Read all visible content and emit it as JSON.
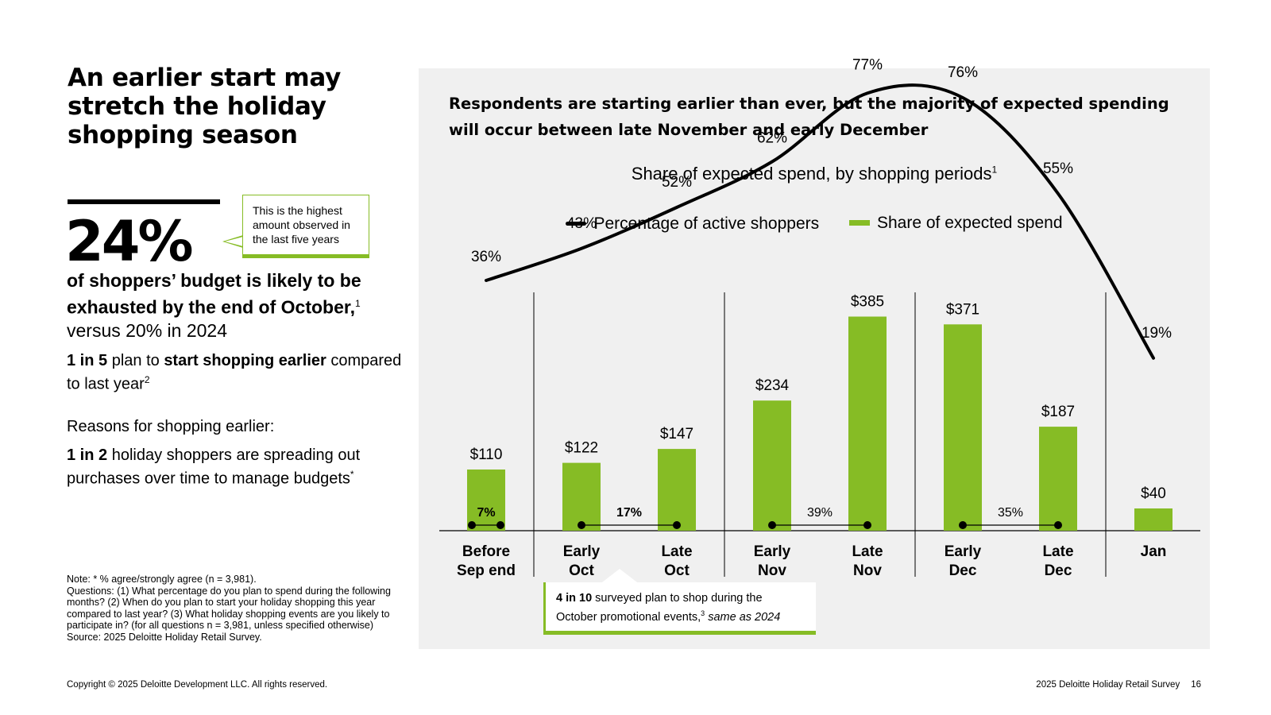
{
  "headline": "An earlier start may stretch the holiday shopping season",
  "stat": {
    "value": "24%",
    "callout": "This is the highest amount observed in the last five years",
    "desc_bold": "of shoppers’ budget is likely to be exhausted by the end of October,",
    "desc_sup": "1",
    "desc_rest": "versus 20% in 2024"
  },
  "fact1": {
    "bold1": "1 in 5",
    "text1": " plan to ",
    "bold2": "start shopping earlier",
    "text2": " compared to last year",
    "sup": "2"
  },
  "reasons_label": "Reasons for shopping earlier:",
  "fact2": {
    "bold": "1 in 2",
    "text": " holiday shoppers are spreading out purchases over time to manage budgets",
    "sup": "*"
  },
  "note": "Note: * % agree/strongly agree (n = 3,981).\nQuestions: (1) What percentage do you plan to spend during the following months? (2) When do you plan to start your holiday shopping this year compared to last year? (3) What holiday shopping events are you likely to participate in? (for all questions n = 3,981, unless specified otherwise)\nSource: 2025 Deloitte Holiday Retail Survey.",
  "footer": {
    "copyright": "Copyright © 2025 Deloitte Development LLC. All rights reserved.",
    "survey": "2025 Deloitte Holiday Retail Survey",
    "page": "16"
  },
  "panel_title": "Respondents are starting earlier than ever, but the majority of expected spending will occur between late November and early December",
  "chart_data": {
    "type": "bar",
    "title": "Share of expected spend, by shopping periods",
    "title_sup": "1",
    "legend": [
      "Percentage of active shoppers",
      "Share of expected spend"
    ],
    "categories": [
      "Before\nSep end",
      "Early\nOct",
      "Late\nOct",
      "Early\nNov",
      "Late\nNov",
      "Early\nDec",
      "Late\nDec",
      "Jan"
    ],
    "series": [
      {
        "name": "Share of expected spend",
        "kind": "bar",
        "values": [
          110,
          122,
          147,
          234,
          385,
          371,
          187,
          40
        ],
        "labels": [
          "$110",
          "$122",
          "$147",
          "$234",
          "$385",
          "$371",
          "$187",
          "$40"
        ]
      },
      {
        "name": "Percentage of active shoppers",
        "kind": "line",
        "values": [
          36,
          43,
          52,
          62,
          77,
          76,
          55,
          19
        ],
        "labels": [
          "36%",
          "43%",
          "52%",
          "62%",
          "77%",
          "76%",
          "55%",
          "19%"
        ]
      }
    ],
    "spend_ylim": [
      0,
      420
    ],
    "period_shares": [
      {
        "from": 0,
        "to": 0,
        "label": "7%",
        "bold": true
      },
      {
        "from": 1,
        "to": 2,
        "label": "17%",
        "bold": true
      },
      {
        "from": 3,
        "to": 4,
        "label": "39%",
        "bold": false
      },
      {
        "from": 5,
        "to": 6,
        "label": "35%",
        "bold": false
      }
    ],
    "group_dividers_after": [
      0,
      2,
      4,
      6
    ],
    "colors": {
      "bar": "#86bc25",
      "line": "#000000"
    }
  },
  "oct_callout": {
    "bold": "4 in 10",
    "text": " surveyed plan to shop during the October promotional events,",
    "sup": "3",
    "italic": "same as 2024"
  }
}
